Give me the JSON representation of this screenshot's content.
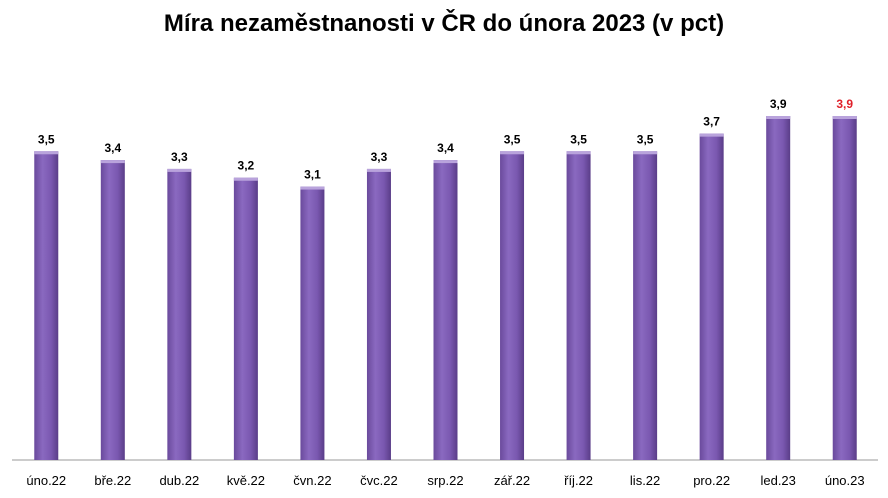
{
  "chart_data": {
    "type": "bar",
    "title": "Míra nezaměstnanosti v ČR do února 2023 (v pct)",
    "categories": [
      "úno.22",
      "bře.22",
      "dub.22",
      "kvě.22",
      "čvn.22",
      "čvc.22",
      "srp.22",
      "zář.22",
      "říj.22",
      "lis.22",
      "pro.22",
      "led.23",
      "úno.23"
    ],
    "values": [
      3.5,
      3.4,
      3.3,
      3.2,
      3.1,
      3.3,
      3.4,
      3.5,
      3.5,
      3.5,
      3.7,
      3.9,
      3.9
    ],
    "labels": [
      "3,5",
      "3,4",
      "3,3",
      "3,2",
      "3,1",
      "3,3",
      "3,4",
      "3,5",
      "3,5",
      "3,5",
      "3,7",
      "3,9",
      "3,9"
    ],
    "ylim": [
      0,
      3.9
    ],
    "grid": false,
    "bar_color": "#7f5cb4",
    "highlight_label_color": "#e0202a",
    "highlight_index": 12
  }
}
